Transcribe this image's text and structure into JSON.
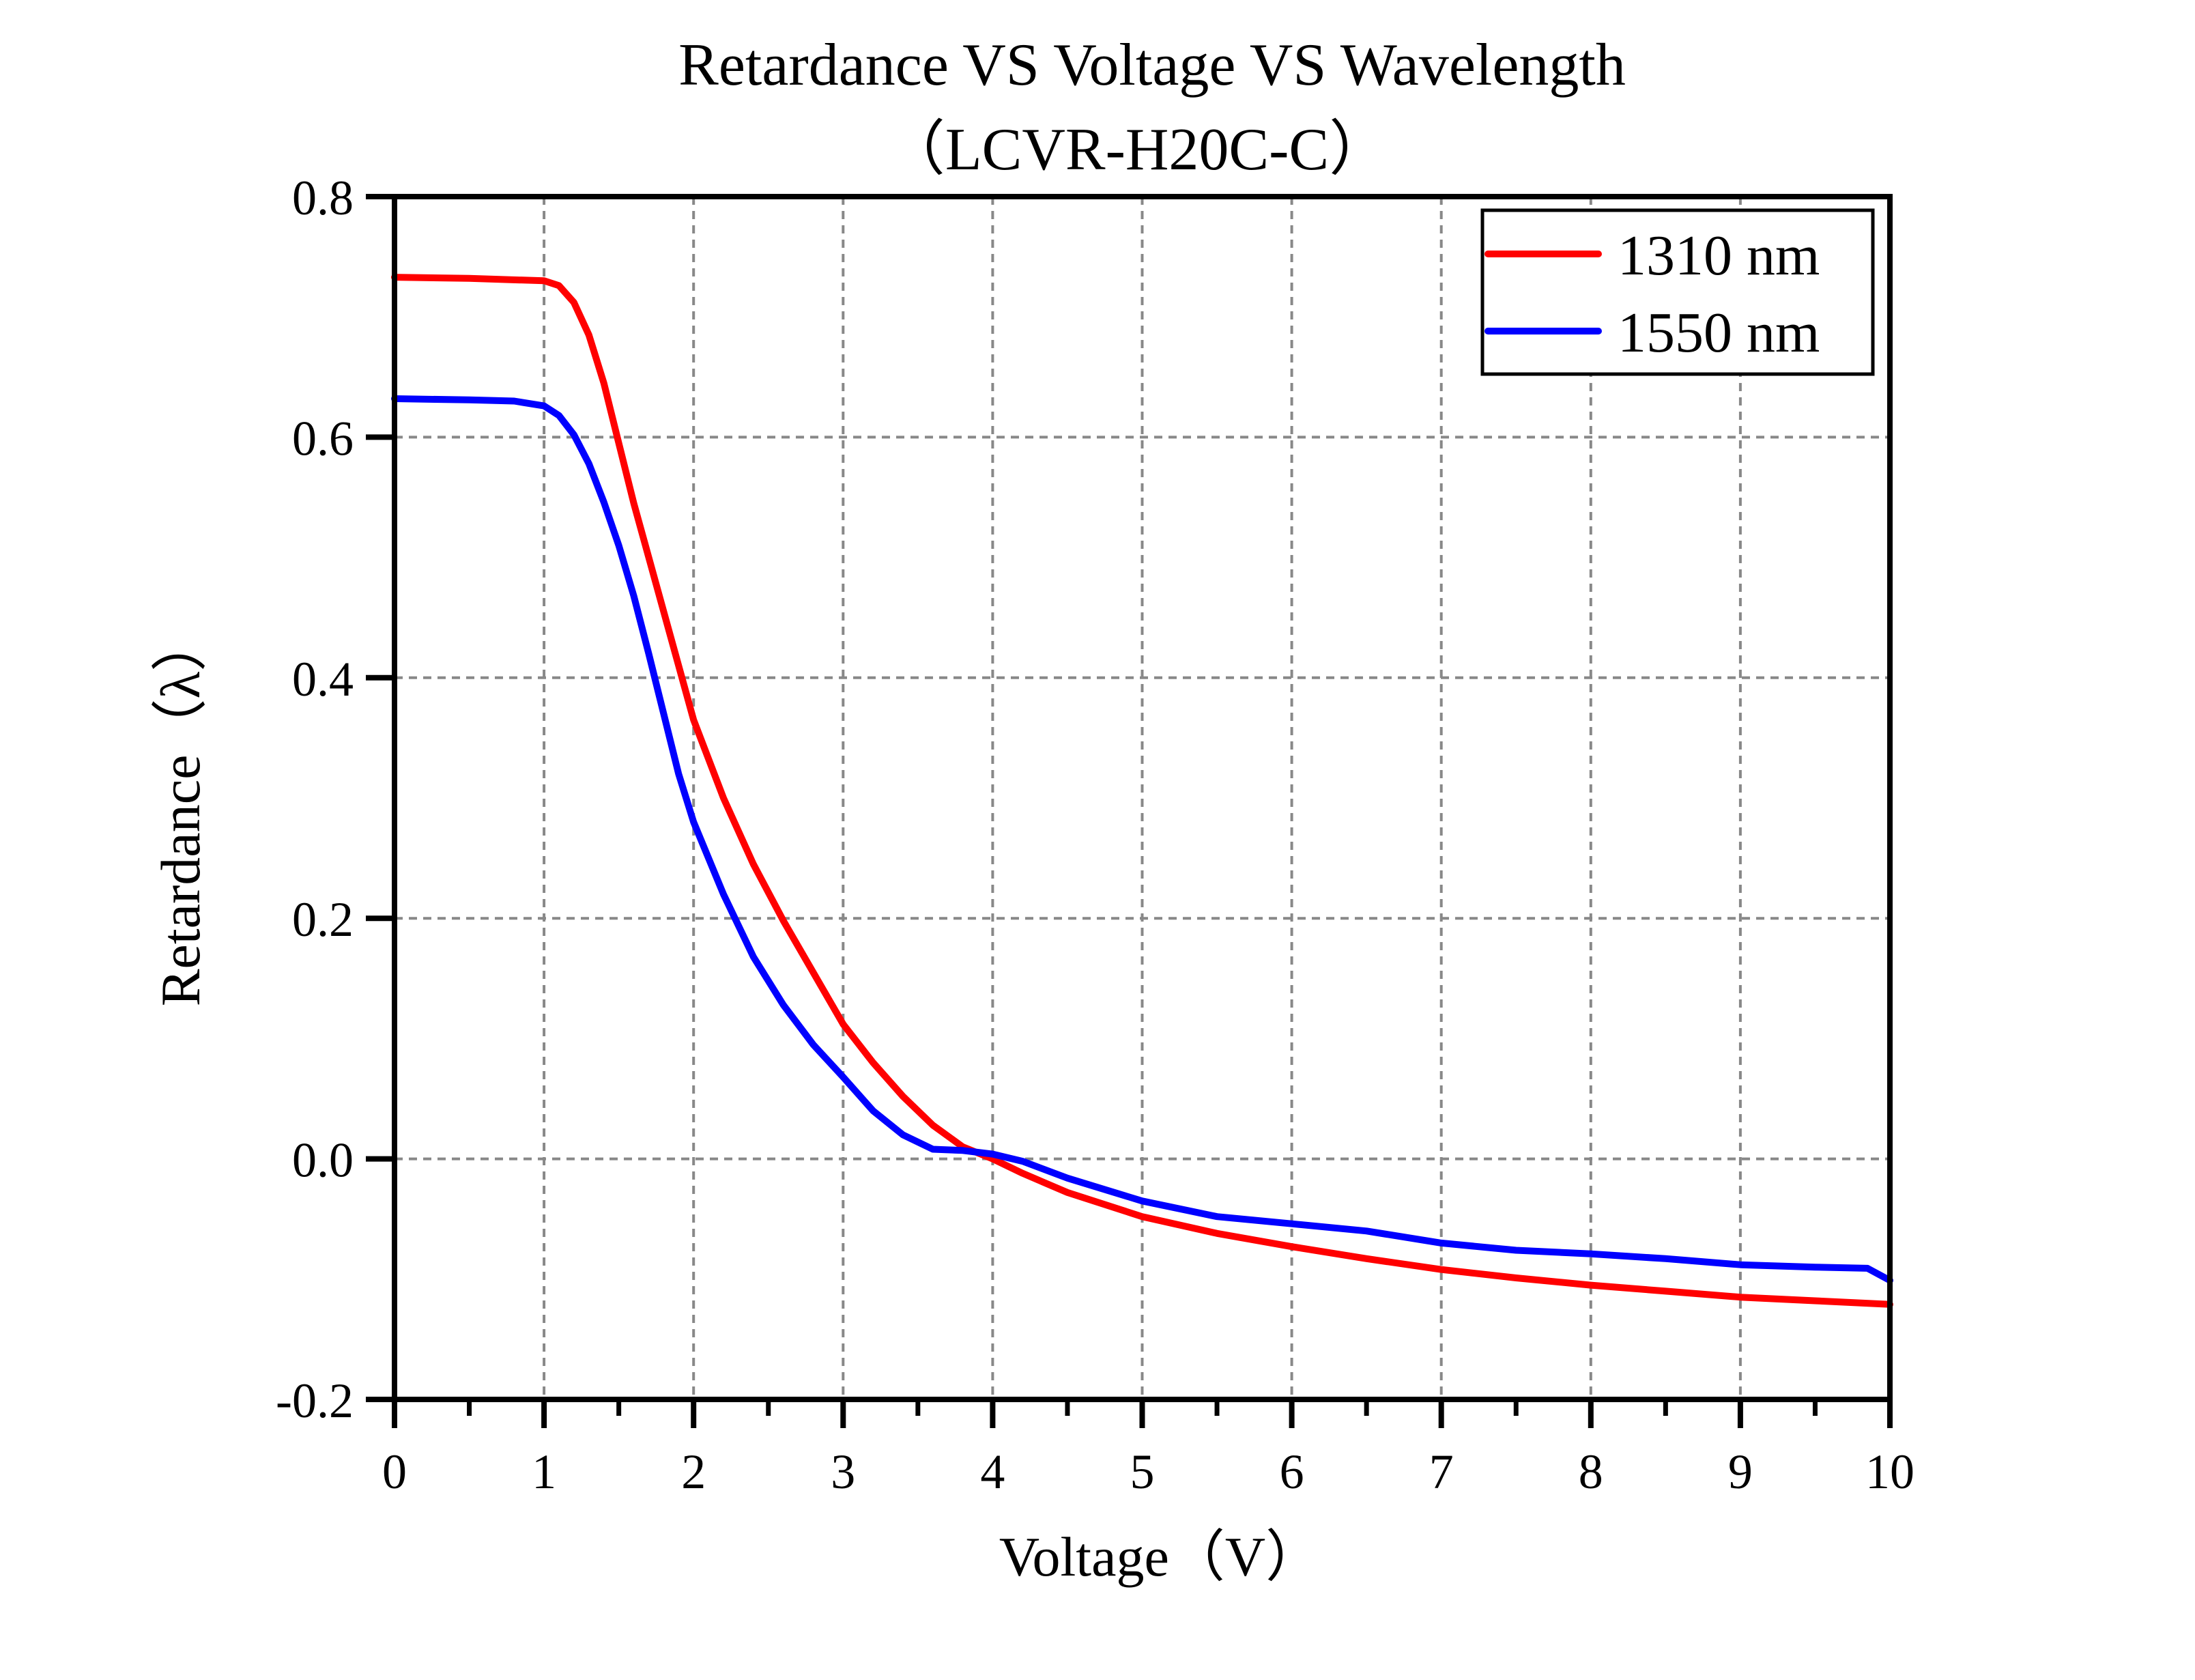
{
  "chart_data": {
    "type": "line",
    "title": "Retardance VS Voltage VS Wavelength",
    "subtitle": "（LCVR-H20C-C）",
    "xlabel": "Voltage（V）",
    "ylabel": "Retardance（λ）",
    "xlim": [
      0,
      10
    ],
    "ylim": [
      -0.2,
      0.8
    ],
    "xticks": [
      0,
      1,
      2,
      3,
      4,
      5,
      6,
      7,
      8,
      9,
      10
    ],
    "xtick_labels": [
      "0",
      "1",
      "2",
      "3",
      "4",
      "5",
      "6",
      "7",
      "8",
      "9",
      "10"
    ],
    "xminor_ticks": [
      0.5,
      1.5,
      2.5,
      3.5,
      4.5,
      5.5,
      6.5,
      7.5,
      8.5,
      9.5
    ],
    "yticks": [
      -0.2,
      0.0,
      0.2,
      0.4,
      0.6,
      0.8
    ],
    "ytick_labels": [
      "-0.2",
      "0.0",
      "0.2",
      "0.4",
      "0.6",
      "0.8"
    ],
    "grid": true,
    "legend_position": "top-right",
    "series": [
      {
        "name": "1310 nm",
        "color": "#ff0000",
        "x": [
          0,
          0.5,
          1.0,
          1.1,
          1.2,
          1.3,
          1.4,
          1.5,
          1.6,
          1.7,
          1.8,
          1.9,
          2.0,
          2.2,
          2.4,
          2.6,
          2.8,
          3.0,
          3.2,
          3.4,
          3.6,
          3.8,
          4.0,
          4.2,
          4.5,
          5.0,
          5.5,
          6.0,
          6.5,
          7.0,
          7.5,
          8.0,
          8.5,
          9.0,
          9.5,
          10.0
        ],
        "y": [
          0.733,
          0.732,
          0.73,
          0.726,
          0.712,
          0.685,
          0.645,
          0.595,
          0.545,
          0.5,
          0.455,
          0.41,
          0.365,
          0.3,
          0.245,
          0.198,
          0.155,
          0.112,
          0.08,
          0.052,
          0.028,
          0.01,
          0.0,
          -0.012,
          -0.028,
          -0.048,
          -0.062,
          -0.073,
          -0.083,
          -0.092,
          -0.099,
          -0.105,
          -0.11,
          -0.115,
          -0.118,
          -0.121
        ]
      },
      {
        "name": "1550 nm",
        "color": "#0000ff",
        "x": [
          0,
          0.5,
          0.8,
          1.0,
          1.1,
          1.2,
          1.3,
          1.4,
          1.5,
          1.6,
          1.7,
          1.8,
          1.9,
          2.0,
          2.2,
          2.4,
          2.6,
          2.8,
          3.0,
          3.2,
          3.4,
          3.6,
          3.8,
          4.0,
          4.2,
          4.5,
          5.0,
          5.5,
          6.0,
          6.5,
          7.0,
          7.5,
          8.0,
          8.5,
          9.0,
          9.5,
          9.85,
          10.0
        ],
        "y": [
          0.632,
          0.631,
          0.63,
          0.626,
          0.618,
          0.602,
          0.578,
          0.546,
          0.51,
          0.468,
          0.42,
          0.37,
          0.32,
          0.28,
          0.22,
          0.168,
          0.128,
          0.095,
          0.068,
          0.04,
          0.02,
          0.008,
          0.007,
          0.004,
          -0.002,
          -0.016,
          -0.035,
          -0.048,
          -0.054,
          -0.06,
          -0.07,
          -0.076,
          -0.079,
          -0.083,
          -0.088,
          -0.09,
          -0.091,
          -0.101
        ]
      }
    ]
  }
}
